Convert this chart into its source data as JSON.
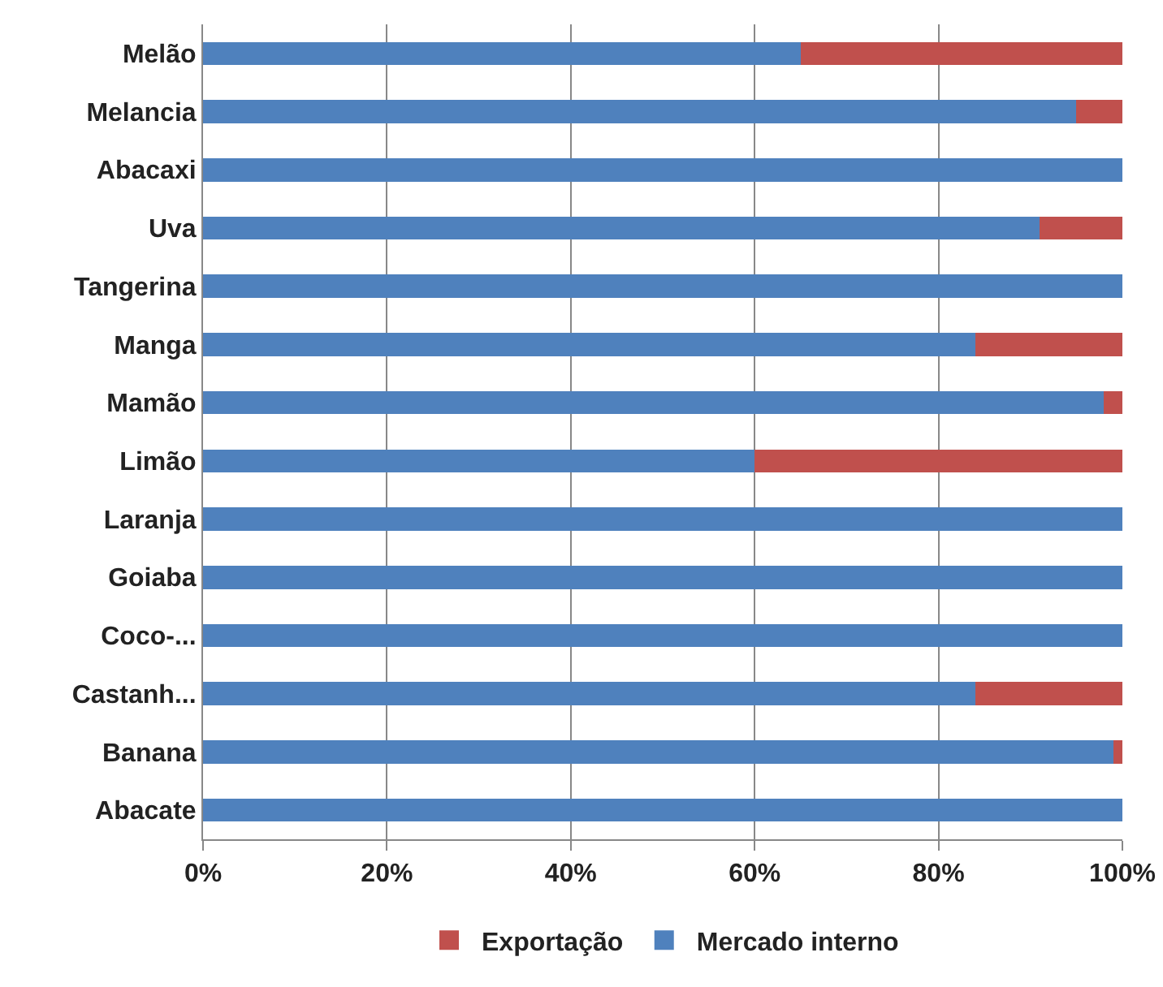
{
  "chart_data": {
    "type": "bar",
    "orientation": "horizontal",
    "stacked": true,
    "categories": [
      "Melão",
      "Melancia",
      "Abacaxi",
      "Uva",
      "Tangerina",
      "Manga",
      "Mamão",
      "Limão",
      "Laranja",
      "Goiaba",
      "Coco-...",
      "Castanh...",
      "Banana",
      "Abacate"
    ],
    "series": [
      {
        "name": "Mercado interno",
        "color": "#4f81bd",
        "values": [
          65,
          95,
          100,
          91,
          100,
          84,
          98,
          60,
          100,
          100,
          100,
          84,
          99,
          100
        ]
      },
      {
        "name": "Exportação",
        "color": "#c0504d",
        "values": [
          35,
          5,
          0,
          9,
          0,
          16,
          2,
          40,
          0,
          0,
          0,
          16,
          1,
          0
        ]
      }
    ],
    "xlim": [
      0,
      100
    ],
    "xticks": [
      {
        "value": 0,
        "label": "0%"
      },
      {
        "value": 20,
        "label": "20%"
      },
      {
        "value": 40,
        "label": "40%"
      },
      {
        "value": 60,
        "label": "60%"
      },
      {
        "value": 80,
        "label": "80%"
      },
      {
        "value": 100,
        "label": "100%"
      }
    ],
    "grid": "x",
    "legend": "bottom"
  }
}
